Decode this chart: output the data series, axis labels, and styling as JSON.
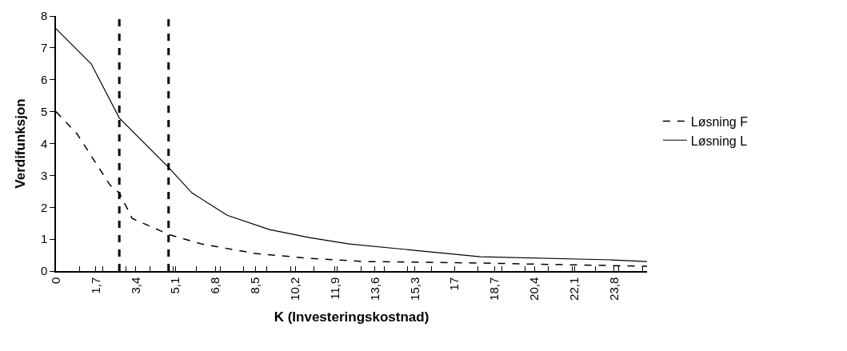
{
  "chart_data": {
    "type": "line",
    "xlabel": "K (Investeringskostnad)",
    "ylabel": "Verdifunksjon",
    "xlim": [
      0,
      25.2
    ],
    "ylim": [
      0,
      8
    ],
    "xticks": [
      0,
      {
        "value": 1,
        "label": null
      },
      {
        "value": 1.7,
        "label": "1,7"
      },
      {
        "value": 2,
        "label": null
      },
      {
        "value": 3,
        "label": null
      },
      {
        "value": 3.4,
        "label": "3,4"
      },
      {
        "value": 4,
        "label": null
      },
      {
        "value": 5,
        "label": null
      },
      {
        "value": 5.1,
        "label": "5,1"
      },
      {
        "value": 6,
        "label": null
      },
      {
        "value": 6.8,
        "label": "6,8"
      },
      {
        "value": 7,
        "label": null
      },
      {
        "value": 8,
        "label": null
      },
      {
        "value": 8.5,
        "label": "8,5"
      },
      {
        "value": 9,
        "label": null
      },
      {
        "value": 10,
        "label": null
      },
      {
        "value": 10.2,
        "label": "10,2"
      },
      {
        "value": 11,
        "label": null
      },
      {
        "value": 11.9,
        "label": "11,9"
      },
      {
        "value": 12,
        "label": null
      },
      {
        "value": 13,
        "label": null
      },
      {
        "value": 13.6,
        "label": "13,6"
      },
      {
        "value": 14,
        "label": null
      },
      {
        "value": 15,
        "label": null
      },
      {
        "value": 15.3,
        "label": "15,3"
      },
      {
        "value": 16,
        "label": null
      },
      {
        "value": 17,
        "label": "17"
      },
      {
        "value": 18,
        "label": null
      },
      {
        "value": 18.7,
        "label": "18,7"
      },
      {
        "value": 19,
        "label": null
      },
      {
        "value": 20,
        "label": null
      },
      {
        "value": 20.4,
        "label": "20,4"
      },
      {
        "value": 21,
        "label": null
      },
      {
        "value": 22,
        "label": null
      },
      {
        "value": 22.1,
        "label": "22,1"
      },
      {
        "value": 23,
        "label": null
      },
      {
        "value": 23.8,
        "label": "23,8"
      },
      {
        "value": 24,
        "label": null
      },
      {
        "value": 25,
        "label": null
      }
    ],
    "yticks": [
      0,
      1,
      2,
      3,
      4,
      5,
      6,
      7,
      8
    ],
    "legend": "right",
    "marker": "none",
    "series": [
      {
        "name": "Løsning F",
        "color": "#000000",
        "line_style": "dashed",
        "x": [
          0,
          0.9,
          2.3,
          2.7,
          3.25,
          4.8,
          6.2,
          8.5,
          10.8,
          13.1,
          18.1,
          25.2
        ],
        "values": [
          5.0,
          4.3,
          2.7,
          2.45,
          1.65,
          1.15,
          0.85,
          0.55,
          0.4,
          0.3,
          0.25,
          0.15
        ]
      },
      {
        "name": "Løsning L",
        "color": "#000000",
        "line_style": "solid",
        "x": [
          0,
          1.5,
          2.7,
          4.8,
          5.8,
          7.3,
          9.1,
          10.8,
          12.5,
          18.1,
          23.7,
          25.2
        ],
        "values": [
          7.6,
          6.5,
          4.8,
          3.25,
          2.45,
          1.75,
          1.3,
          1.05,
          0.85,
          0.45,
          0.35,
          0.3
        ]
      }
    ],
    "ref_lines": [
      {
        "axis": "x",
        "value": 2.7,
        "color": "#000000",
        "line_style": "dashed"
      },
      {
        "axis": "x",
        "value": 4.8,
        "color": "#000000",
        "line_style": "dashed"
      }
    ]
  }
}
